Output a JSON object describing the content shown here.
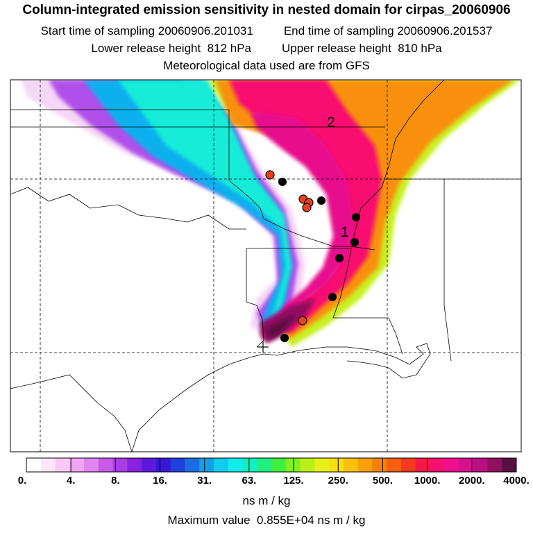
{
  "header": {
    "title": "Column-integrated emission sensitivity in nested domain for cirpas_20060906",
    "start_label": "Start time of sampling",
    "start_value": "20060906.201031",
    "end_label": "End time of sampling",
    "end_value": "20060906.201537",
    "lower_label": "Lower release height",
    "lower_value": "812 hPa",
    "upper_label": "Upper release height",
    "upper_value": "810 hPa",
    "met_text": "Meteorological data used are from GFS"
  },
  "map": {
    "plume_labels": [
      "2",
      "1"
    ],
    "colors": {
      "background": "#ffffff",
      "outline": "#000000",
      "red_marker": "#e8401c",
      "black_marker": "#000000"
    }
  },
  "colorbar": {
    "ticks": [
      "0.",
      "4.",
      "8.",
      "16.",
      "31.",
      "63.",
      "125.",
      "250.",
      "500.",
      "1000.",
      "2000.",
      "4000."
    ],
    "units": "ns m / kg",
    "colors": [
      "#ffffff",
      "#fde6fb",
      "#f8c9f6",
      "#f0a6f2",
      "#e084ee",
      "#c85bea",
      "#a83ce6",
      "#8822e0",
      "#5e1adc",
      "#3818d8",
      "#2040dc",
      "#1c6ee0",
      "#10a0e8",
      "#0cccf0",
      "#10ecec",
      "#10f0c0",
      "#20f080",
      "#40f040",
      "#80f020",
      "#b8f018",
      "#e8f018",
      "#f8e010",
      "#f8c008",
      "#f8a008",
      "#f88008",
      "#f86010",
      "#f83820",
      "#f81848",
      "#f81070",
      "#f0108c",
      "#d81090",
      "#b81080",
      "#901060",
      "#581040"
    ]
  },
  "footer": {
    "max_label": "Maximum value",
    "max_value": "0.855E+04 ns m / kg"
  }
}
